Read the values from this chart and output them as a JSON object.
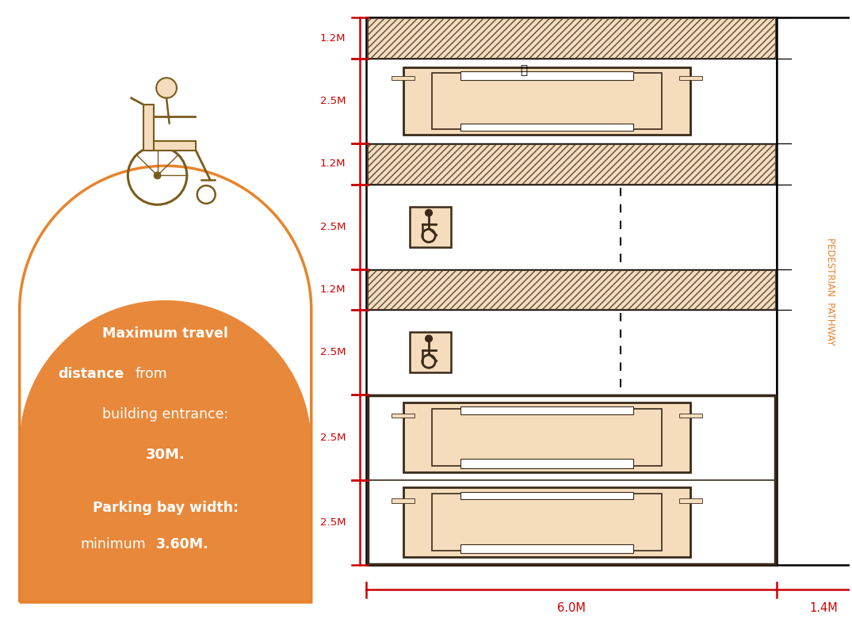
{
  "bg_color": "#ffffff",
  "orange_color": "#E8832A",
  "car_fill": "#F5DCBC",
  "car_stroke": "#3a2a1a",
  "red_dim": "#CC0000",
  "dim_labels": [
    "1.2M",
    "2.5M",
    "1.2M",
    "2.5M",
    "1.2M",
    "2.5M",
    "2.5M",
    "2.5M"
  ],
  "dim_heights": [
    1.2,
    2.5,
    1.2,
    2.5,
    1.2,
    2.5,
    2.5,
    2.5
  ],
  "bottom_dims": [
    "6.0M",
    "1.4M"
  ],
  "pedestrian_text": "PEDESTRIAN  PATHWAY",
  "text_max_travel_bold": "Maximum travel\ndistance",
  "text_max_travel_normal": "from\nbuilding entrance:",
  "text_30m": "30M.",
  "text_bay_width_bold": "Parking bay width:",
  "text_bay_min": "minimum",
  "text_bay_val": "3.60M."
}
